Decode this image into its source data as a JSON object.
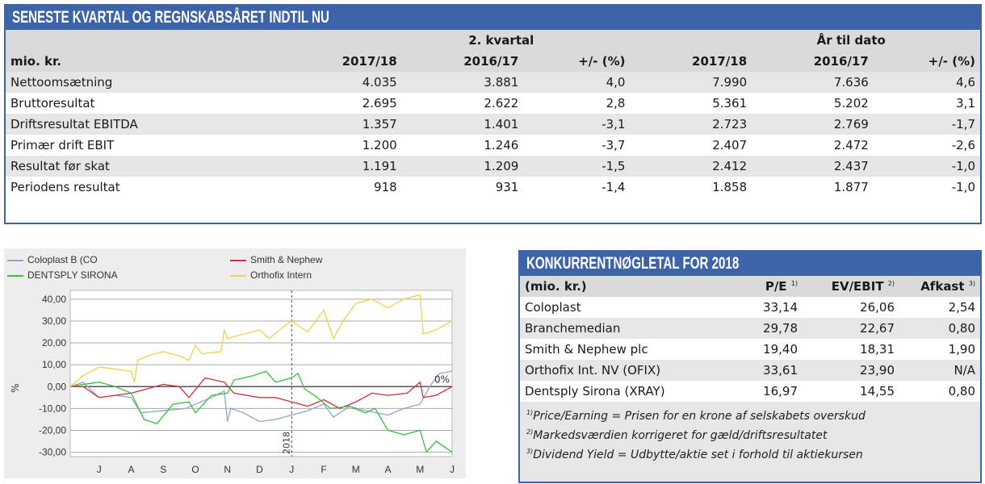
{
  "top_table": {
    "title": "SENESTE KVARTAL OG REGNSKABSÅRET INDTIL NU",
    "group_headers": [
      "2. kvartal",
      "År til dato"
    ],
    "columns": [
      "mio. kr.",
      "2017/18",
      "2016/17",
      "+/- (%)",
      "2017/18",
      "2016/17",
      "+/- (%)"
    ],
    "rows": [
      [
        "Nettoomsætning",
        "4.035",
        "3.881",
        "4,0",
        "7.990",
        "7.636",
        "4,6"
      ],
      [
        "Bruttoresultat",
        "2.695",
        "2.622",
        "2,8",
        "5.361",
        "5.202",
        "3,1"
      ],
      [
        "Driftsresultat EBITDA",
        "1.357",
        "1.401",
        "-3,1",
        "2.723",
        "2.769",
        "-1,7"
      ],
      [
        "Primær drift EBIT",
        "1.200",
        "1.246",
        "-3,7",
        "2.407",
        "2.472",
        "-2,6"
      ],
      [
        "Resultat før skat",
        "1.191",
        "1.209",
        "-1,5",
        "2.412",
        "2.437",
        "-1,0"
      ],
      [
        "Periodens resultat",
        "918",
        "931",
        "-1,4",
        "1.858",
        "1.877",
        "-1,0"
      ]
    ]
  },
  "competitors": {
    "title": "KONKURRENTNØGLETAL FOR 2018",
    "columns": [
      {
        "label": "(mio. kr.)",
        "sup": ""
      },
      {
        "label": "P/E",
        "sup": "1)"
      },
      {
        "label": "EV/EBIT",
        "sup": "2)"
      },
      {
        "label": "Afkast",
        "sup": "3)"
      }
    ],
    "rows": [
      [
        "Coloplast",
        "33,14",
        "26,06",
        "2,54"
      ],
      [
        "Branchemedian",
        "29,78",
        "22,67",
        "0,80"
      ],
      [
        "Smith & Nephew plc",
        "19,40",
        "18,31",
        "1,90"
      ],
      [
        "Orthofix Int. NV (OFIX)",
        "33,61",
        "23,90",
        "N/A"
      ],
      [
        "Dentsply Sirona (XRAY)",
        "16,97",
        "14,55",
        "0,80"
      ]
    ],
    "notes": [
      {
        "sup": "1)",
        "text": "Price/Earning = Prisen for en krone af selskabets overskud"
      },
      {
        "sup": "2)",
        "text": "Markedsværdien korrigeret for gæld/driftsresultatet"
      },
      {
        "sup": "3)",
        "text": "Dividend Yield = Udbytte/aktie set i forhold til aktiekursen"
      }
    ]
  },
  "chart_data": {
    "type": "line",
    "ylabel": "%",
    "ylim": [
      -32,
      44
    ],
    "xlim": [
      -0.9,
      11
    ],
    "yticks": [
      40,
      30,
      20,
      10,
      0,
      -10,
      -20,
      -30
    ],
    "ytick_labels": [
      "40,00",
      "30,00",
      "20,00",
      "10,00",
      "0,00",
      "-10,00",
      "-20,00",
      "-30,00"
    ],
    "xtick_labels": [
      "J",
      "A",
      "S",
      "O",
      "N",
      "D",
      "J",
      "F",
      "M",
      "A",
      "M",
      "J"
    ],
    "year_marker": {
      "x": 6,
      "label": "2018"
    },
    "zero_label": "0%",
    "legend_position": "top",
    "series": [
      {
        "name": "Coloplast B (CO",
        "color": "#8fa6cc",
        "points": [
          [
            -0.9,
            0
          ],
          [
            -0.5,
            2
          ],
          [
            0,
            -5
          ],
          [
            0.5,
            -4
          ],
          [
            1,
            -5
          ],
          [
            1.3,
            -12
          ],
          [
            2,
            -11
          ],
          [
            2.7,
            -10
          ],
          [
            3,
            -8
          ],
          [
            3.5,
            -5
          ],
          [
            3.9,
            -2
          ],
          [
            4,
            -16
          ],
          [
            4.1,
            -10
          ],
          [
            4.5,
            -12
          ],
          [
            5,
            -16
          ],
          [
            5.5,
            -15
          ],
          [
            6,
            -13
          ],
          [
            6.5,
            -11
          ],
          [
            7,
            -8
          ],
          [
            7.3,
            -14
          ],
          [
            7.8,
            -9
          ],
          [
            8.3,
            -11
          ],
          [
            9,
            -13
          ],
          [
            9.5,
            -10
          ],
          [
            10,
            -8
          ],
          [
            10.3,
            0
          ],
          [
            10.6,
            6
          ],
          [
            11,
            7
          ]
        ]
      },
      {
        "name": "Smith & Nephew",
        "color": "#c8343c",
        "points": [
          [
            -0.9,
            0
          ],
          [
            -0.5,
            0
          ],
          [
            0,
            -5
          ],
          [
            0.5,
            -4
          ],
          [
            1,
            -3
          ],
          [
            1.5,
            -1
          ],
          [
            2,
            1
          ],
          [
            2.5,
            0
          ],
          [
            2.8,
            -5
          ],
          [
            3.3,
            4
          ],
          [
            3.9,
            2
          ],
          [
            4.2,
            -3
          ],
          [
            5,
            -5
          ],
          [
            5.5,
            -5
          ],
          [
            6,
            -7
          ],
          [
            6.5,
            -9
          ],
          [
            7,
            -6
          ],
          [
            7.5,
            -10
          ],
          [
            8,
            -7
          ],
          [
            8.5,
            -3
          ],
          [
            9,
            -4
          ],
          [
            9.6,
            -3
          ],
          [
            10,
            2
          ],
          [
            10.1,
            -5
          ],
          [
            10.5,
            -4
          ],
          [
            11,
            0
          ]
        ]
      },
      {
        "name": "DENTSPLY SIRONA",
        "color": "#3cbf3c",
        "points": [
          [
            -0.9,
            0
          ],
          [
            -0.5,
            1
          ],
          [
            0,
            2
          ],
          [
            0.5,
            0
          ],
          [
            1,
            -3
          ],
          [
            1.4,
            -15
          ],
          [
            1.8,
            -17
          ],
          [
            2.3,
            -8
          ],
          [
            2.8,
            -7
          ],
          [
            3,
            -12
          ],
          [
            3.5,
            -4
          ],
          [
            4,
            -3
          ],
          [
            4.2,
            3
          ],
          [
            4.8,
            5
          ],
          [
            5.2,
            7
          ],
          [
            5.5,
            2
          ],
          [
            6,
            4
          ],
          [
            6.2,
            6
          ],
          [
            6.4,
            -1
          ],
          [
            6.8,
            -5
          ],
          [
            7.2,
            -10
          ],
          [
            7.8,
            -9
          ],
          [
            8.3,
            -12
          ],
          [
            8.6,
            -10
          ],
          [
            9,
            -20
          ],
          [
            9.5,
            -22
          ],
          [
            10,
            -20
          ],
          [
            10.2,
            -30
          ],
          [
            10.5,
            -25
          ],
          [
            11,
            -30
          ]
        ]
      },
      {
        "name": "Orthofix Intern",
        "color": "#e8d44a",
        "points": [
          [
            -0.9,
            0
          ],
          [
            -0.5,
            5
          ],
          [
            0,
            9
          ],
          [
            0.5,
            8
          ],
          [
            1,
            7
          ],
          [
            1.1,
            2
          ],
          [
            1.2,
            12
          ],
          [
            1.5,
            14
          ],
          [
            2,
            16
          ],
          [
            2.5,
            14
          ],
          [
            2.8,
            12
          ],
          [
            3,
            19
          ],
          [
            3.2,
            15
          ],
          [
            3.8,
            16
          ],
          [
            3.9,
            26
          ],
          [
            4,
            22
          ],
          [
            4.5,
            24
          ],
          [
            5,
            26
          ],
          [
            5.3,
            22
          ],
          [
            5.8,
            28
          ],
          [
            6,
            30
          ],
          [
            6.5,
            25
          ],
          [
            7,
            35
          ],
          [
            7.3,
            22
          ],
          [
            7.6,
            30
          ],
          [
            8,
            38
          ],
          [
            8.5,
            40
          ],
          [
            9,
            36
          ],
          [
            9.5,
            40
          ],
          [
            10,
            42
          ],
          [
            10.1,
            24
          ],
          [
            10.5,
            26
          ],
          [
            11,
            30
          ]
        ]
      }
    ]
  }
}
